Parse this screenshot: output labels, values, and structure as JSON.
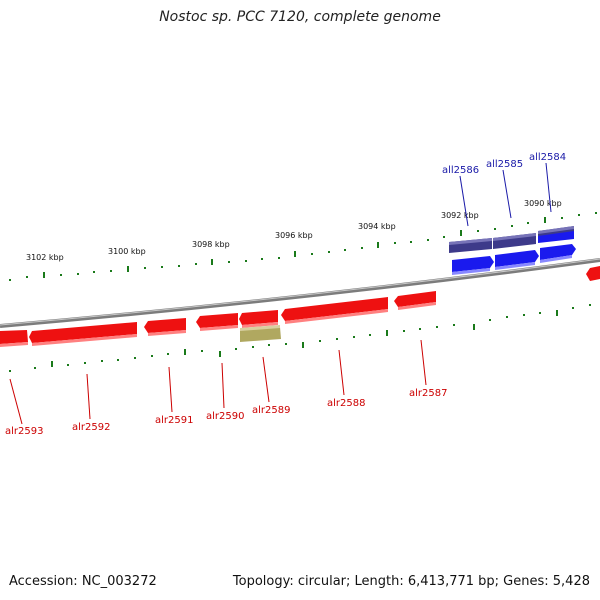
{
  "title": "Nostoc sp. PCC 7120, complete genome",
  "footer": {
    "accession": "Accession: NC_003272",
    "stats": "Topology: circular; Length: 6,413,771 bp; Genes: 5,428"
  },
  "kbp_labels": [
    "3102 kbp",
    "3100 kbp",
    "3098 kbp",
    "3096 kbp",
    "3094 kbp",
    "3092 kbp",
    "3090 kbp"
  ],
  "genes_reverse": [
    "all2586",
    "all2585",
    "all2584"
  ],
  "genes_forward": [
    "alr2593",
    "alr2592",
    "alr2591",
    "alr2590",
    "alr2589",
    "alr2588",
    "alr2587"
  ],
  "colors": {
    "forward": "#ee1111",
    "reverse": "#1a1aee",
    "reverse_dark": "#3d3a8a",
    "other": "#b0a860",
    "backbone": "#888888",
    "ticks": "#1a7a1a",
    "label_red": "#cc0000",
    "label_blue": "#1a1aa8"
  }
}
